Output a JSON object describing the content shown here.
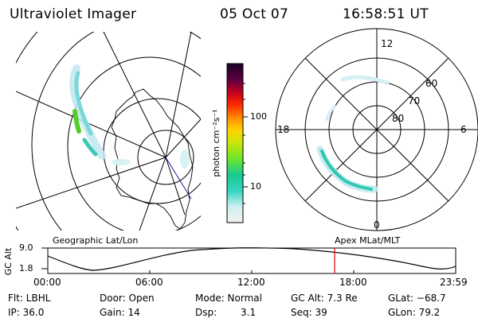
{
  "header": {
    "instrument": "Ultraviolet Imager",
    "date": "05 Oct 07",
    "time": "16:58:51 UT"
  },
  "colorbar": {
    "unit_label": "photon cm⁻²s⁻¹",
    "ticks": [
      "100",
      "10"
    ]
  },
  "polar_plot": {
    "mlt_labels": [
      "12",
      "6",
      "0",
      "18"
    ],
    "lat_labels": [
      "60",
      "70",
      "80"
    ]
  },
  "timeline": {
    "left_title": "Geographic Lat/Lon",
    "right_title": "Apex MLat/MLT",
    "ylabel": "GC Alt",
    "y_ticks": [
      "9.0",
      "1.8"
    ],
    "x_ticks": [
      "00:00",
      "06:00",
      "12:00",
      "18:00",
      "23:59"
    ],
    "marker_color": "#e00000"
  },
  "info": {
    "flt": "Flt: LBHL",
    "ip": "IP: 36.0",
    "door": "Door: Open",
    "gain": "Gain: 14",
    "mode": "Mode: Normal",
    "dsp_label": "Dsp:",
    "dsp_value": "3.1",
    "gc_alt": "GC Alt: 7.3 Re",
    "seq": "Seq: 39",
    "glat": "GLat: −68.7",
    "glon": "GLon: 79.2"
  }
}
